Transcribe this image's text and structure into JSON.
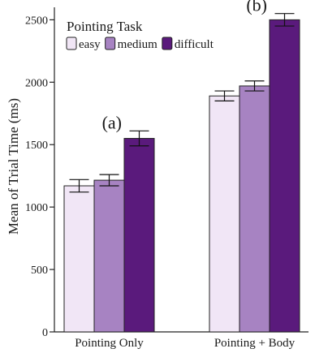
{
  "chart_data": {
    "type": "bar",
    "categories": [
      "Pointing Only",
      "Pointing + Body"
    ],
    "series": [
      {
        "name": "easy",
        "values": [
          1170,
          1890
        ],
        "errors": [
          50,
          40
        ],
        "color": "#f1e6f6"
      },
      {
        "name": "medium",
        "values": [
          1215,
          1970
        ],
        "errors": [
          45,
          40
        ],
        "color": "#a783c2"
      },
      {
        "name": "difficult",
        "values": [
          1550,
          2500
        ],
        "errors": [
          60,
          50
        ],
        "color": "#5a1a7c"
      }
    ],
    "title": "",
    "xlabel": "",
    "ylabel": "Mean of Trial Time (ms)",
    "ylim": [
      0,
      2600
    ],
    "yticks": [
      0,
      500,
      1000,
      1500,
      2000,
      2500
    ],
    "grid": false,
    "legend": {
      "title": "Pointing Task",
      "position": "top-left"
    },
    "annotations": [
      {
        "text": "(a)",
        "group": "Pointing Only"
      },
      {
        "text": "(b)",
        "group": "Pointing + Body"
      }
    ]
  }
}
